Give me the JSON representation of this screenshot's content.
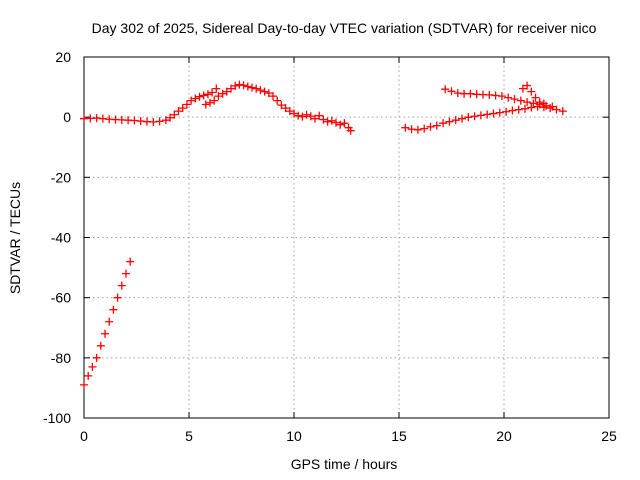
{
  "chart_data": {
    "type": "scatter",
    "title": "Day 302 of 2025, Sidereal Day-to-day VTEC variation (SDTVAR) for receiver nico",
    "xlabel": "GPS time / hours",
    "ylabel": "SDTVAR / TECUs",
    "xlim": [
      0,
      25
    ],
    "ylim": [
      -100,
      20
    ],
    "xticks": [
      0,
      5,
      10,
      15,
      20,
      25
    ],
    "yticks": [
      -100,
      -80,
      -60,
      -40,
      -20,
      0,
      20
    ],
    "grid": true,
    "marker": "plus",
    "colors": {
      "series": "#ff0000",
      "grid": "#a0a0a0",
      "axes": "#000000"
    },
    "series": [
      {
        "values": [
          [
            0.0,
            -89
          ],
          [
            0.2,
            -86
          ],
          [
            0.4,
            -83
          ],
          [
            0.6,
            -80
          ],
          [
            0.8,
            -76
          ],
          [
            1.0,
            -72
          ],
          [
            1.2,
            -68
          ],
          [
            1.4,
            -64
          ],
          [
            1.6,
            -60
          ],
          [
            1.8,
            -56
          ],
          [
            2.0,
            -52
          ],
          [
            2.2,
            -48
          ],
          [
            0.0,
            -0.5
          ],
          [
            0.3,
            -0.4
          ],
          [
            0.6,
            -0.3
          ],
          [
            0.9,
            -0.5
          ],
          [
            1.2,
            -0.7
          ],
          [
            1.5,
            -0.8
          ],
          [
            1.8,
            -0.9
          ],
          [
            2.1,
            -1.0
          ],
          [
            2.4,
            -1.1
          ],
          [
            2.7,
            -1.3
          ],
          [
            3.0,
            -1.5
          ],
          [
            3.3,
            -1.6
          ],
          [
            3.6,
            -1.4
          ],
          [
            3.9,
            -1.0
          ],
          [
            4.1,
            -0.2
          ],
          [
            4.3,
            0.8
          ],
          [
            4.5,
            2.0
          ],
          [
            4.7,
            3.0
          ],
          [
            4.9,
            4.2
          ],
          [
            5.1,
            5.5
          ],
          [
            5.3,
            6.2
          ],
          [
            5.5,
            6.8
          ],
          [
            5.7,
            7.2
          ],
          [
            5.9,
            7.6
          ],
          [
            6.1,
            8.2
          ],
          [
            6.3,
            9.5
          ],
          [
            5.8,
            4.2
          ],
          [
            6.0,
            4.8
          ],
          [
            6.2,
            5.5
          ],
          [
            6.4,
            7.0
          ],
          [
            6.6,
            7.8
          ],
          [
            6.8,
            8.5
          ],
          [
            7.0,
            9.5
          ],
          [
            7.2,
            10.4
          ],
          [
            7.4,
            10.8
          ],
          [
            7.6,
            10.6
          ],
          [
            7.8,
            10.2
          ],
          [
            8.0,
            9.8
          ],
          [
            8.2,
            9.5
          ],
          [
            8.4,
            9.0
          ],
          [
            8.6,
            8.5
          ],
          [
            8.8,
            8.0
          ],
          [
            9.0,
            7.0
          ],
          [
            9.2,
            5.5
          ],
          [
            9.4,
            4.0
          ],
          [
            9.6,
            3.0
          ],
          [
            9.8,
            2.0
          ],
          [
            10.0,
            1.2
          ],
          [
            10.2,
            0.5
          ],
          [
            10.4,
            0.2
          ],
          [
            10.6,
            0.8
          ],
          [
            10.8,
            0.3
          ],
          [
            11.0,
            -0.5
          ],
          [
            11.2,
            0.5
          ],
          [
            11.4,
            -0.8
          ],
          [
            11.6,
            -1.5
          ],
          [
            11.8,
            -1.2
          ],
          [
            12.0,
            -1.8
          ],
          [
            12.2,
            -2.5
          ],
          [
            12.4,
            -2.0
          ],
          [
            12.6,
            -3.5
          ],
          [
            12.7,
            -4.5
          ],
          [
            15.3,
            -3.5
          ],
          [
            15.6,
            -4.0
          ],
          [
            15.9,
            -4.2
          ],
          [
            16.2,
            -3.8
          ],
          [
            16.5,
            -3.2
          ],
          [
            16.8,
            -2.8
          ],
          [
            17.1,
            -2.0
          ],
          [
            17.4,
            -1.5
          ],
          [
            17.7,
            -1.0
          ],
          [
            18.0,
            -0.5
          ],
          [
            18.3,
            0.0
          ],
          [
            18.6,
            0.3
          ],
          [
            18.9,
            0.6
          ],
          [
            19.2,
            0.9
          ],
          [
            19.5,
            1.2
          ],
          [
            19.8,
            1.5
          ],
          [
            20.1,
            1.8
          ],
          [
            20.4,
            2.2
          ],
          [
            20.7,
            2.5
          ],
          [
            21.0,
            2.8
          ],
          [
            21.3,
            3.2
          ],
          [
            21.6,
            3.5
          ],
          [
            21.9,
            3.3
          ],
          [
            22.2,
            3.0
          ],
          [
            22.5,
            2.5
          ],
          [
            22.8,
            2.0
          ],
          [
            17.2,
            9.3
          ],
          [
            17.5,
            8.6
          ],
          [
            17.8,
            8.0
          ],
          [
            18.1,
            7.8
          ],
          [
            18.4,
            7.8
          ],
          [
            18.7,
            7.6
          ],
          [
            19.0,
            7.5
          ],
          [
            19.3,
            7.4
          ],
          [
            19.6,
            7.2
          ],
          [
            19.9,
            7.0
          ],
          [
            20.2,
            6.5
          ],
          [
            20.5,
            6.0
          ],
          [
            20.8,
            5.5
          ],
          [
            21.1,
            5.0
          ],
          [
            21.4,
            4.6
          ],
          [
            21.7,
            4.2
          ],
          [
            22.0,
            3.8
          ],
          [
            22.3,
            3.5
          ],
          [
            20.9,
            9.5
          ],
          [
            21.1,
            10.5
          ],
          [
            21.3,
            8.5
          ],
          [
            21.5,
            6.5
          ],
          [
            21.7,
            5.0
          ],
          [
            21.9,
            4.5
          ]
        ]
      }
    ]
  }
}
